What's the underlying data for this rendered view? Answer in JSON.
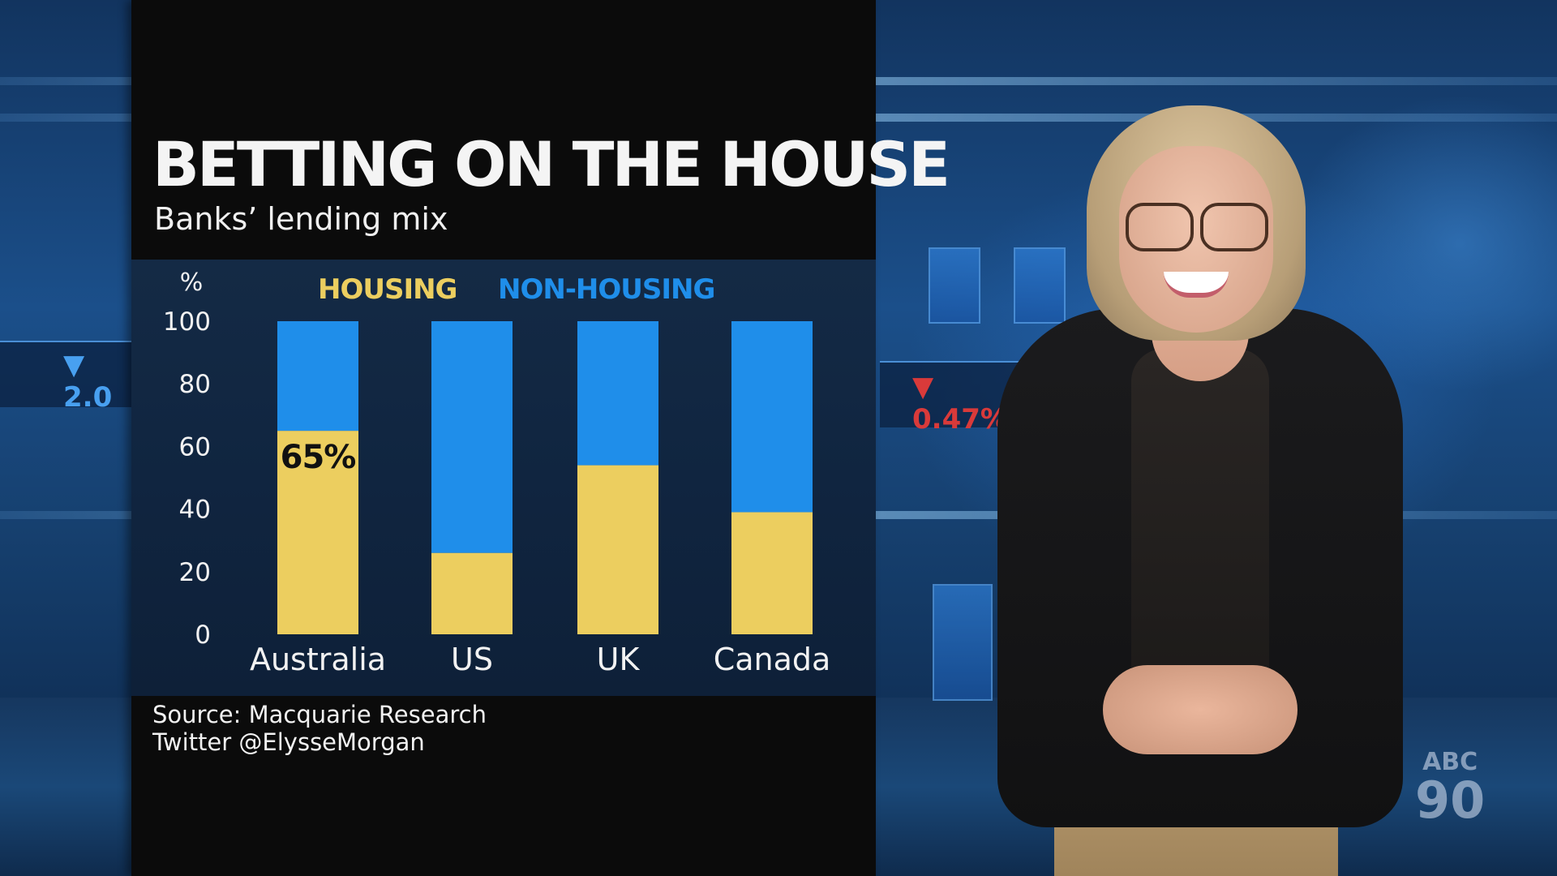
{
  "graphic": {
    "title": "BETTING ON THE HOUSE",
    "subtitle": "Banks’ lending mix",
    "source": "Source: Macquarie Research",
    "credit": "Twitter @ElysseMorgan"
  },
  "chart_data": {
    "type": "bar",
    "stacked": true,
    "title": "BETTING ON THE HOUSE",
    "subtitle": "Banks’ lending mix",
    "ylabel": "%",
    "ylim": [
      0,
      100
    ],
    "yticks": [
      0,
      20,
      40,
      60,
      80,
      100
    ],
    "categories": [
      "Australia",
      "US",
      "UK",
      "Canada"
    ],
    "series": [
      {
        "name": "HOUSING",
        "color": "#ecce5f",
        "values": [
          65,
          26,
          54,
          39
        ]
      },
      {
        "name": "NON-HOUSING",
        "color": "#1f8eea",
        "values": [
          35,
          74,
          46,
          61
        ]
      }
    ],
    "annotations": [
      {
        "category": "Australia",
        "series": "HOUSING",
        "text": "65%"
      }
    ],
    "legend_position": "top",
    "grid": false
  },
  "studio": {
    "ticker_left": "▼ 2.0",
    "ticker_right": "▼ 0.47%"
  },
  "logo": {
    "abc": "ABC",
    "years": "90"
  }
}
